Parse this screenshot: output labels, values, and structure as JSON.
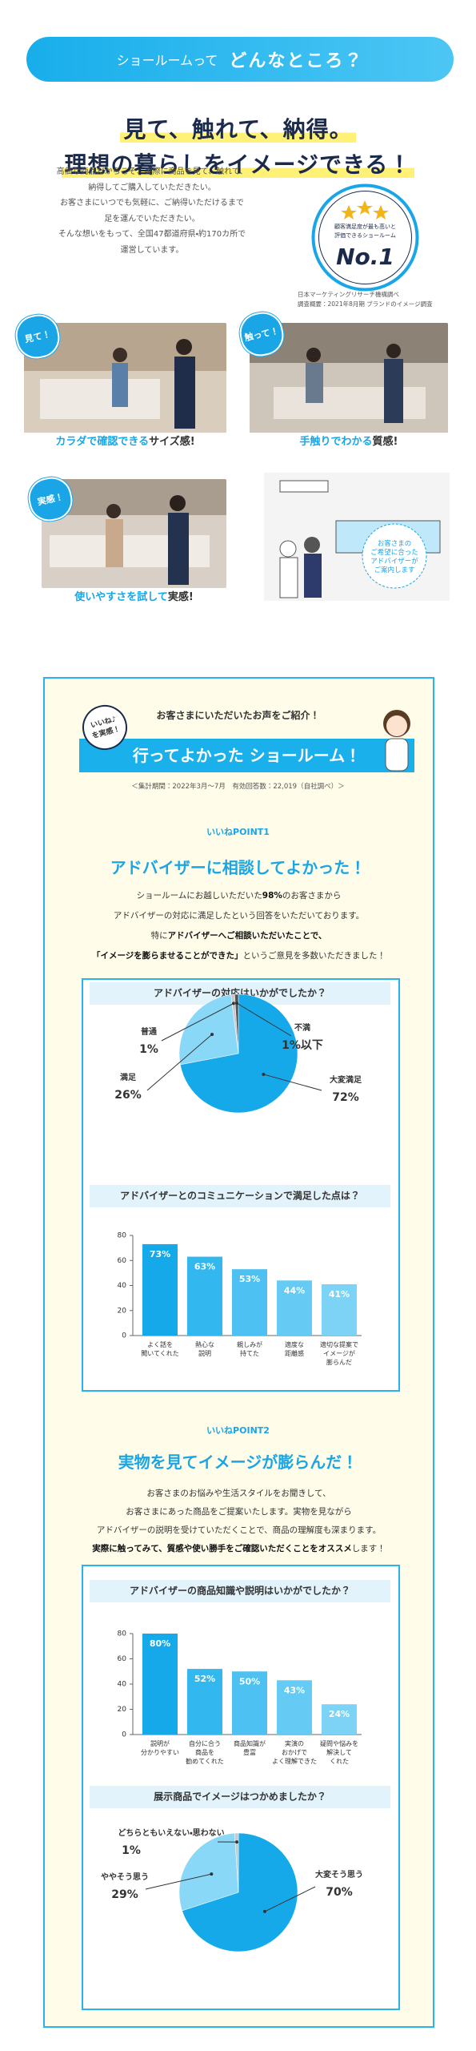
{
  "header": {
    "pill_lead": "ショールームって",
    "pill_title": "どんなところ？",
    "headline": [
      "見て、触れて、納得。",
      "理想の暮らしをイメージできる！"
    ],
    "intro": [
      "高価な商品だからこそ、実際に商品を見て、触れて、",
      "納得してご購入していただきたい。",
      "お客さまにいつでも気軽に、ご納得いただけるまで",
      "足を運んでいただきたい。",
      "そんな想いをもって、全国47都道府県・約170カ所で",
      "運営しています。"
    ],
    "badge": {
      "caption": [
        "顧客満足度が最も高いと",
        "評価できるショールーム"
      ],
      "rank": "No.1"
    },
    "badge_note": [
      "日本マーケティングリサーチ機構調べ",
      "調査概要：2021年8月期 ブランドのイメージ調査"
    ]
  },
  "photos": [
    {
      "bubble": "見て！",
      "emphasis": "カラダで確認できる",
      "text": "サイズ感!"
    },
    {
      "bubble": "触って！",
      "emphasis": "手触りでわかる",
      "text": "質感!"
    },
    {
      "bubble": "実感！",
      "emphasis": "使いやすさを試して",
      "text": "実感!"
    }
  ],
  "illustration": {
    "note": "お客さまの\nご希望に合った\nアドバイザーが\nご案内します"
  },
  "voices": {
    "intro": "お客さまにいただいたお声をご紹介！",
    "badge": "いいね♪\nを実感！",
    "title": "行ってよかった ショールーム！",
    "note": "＜集計期間：2022年3月〜7月　有効回答数：22,019（自社調べ）＞"
  },
  "points": [
    {
      "label": "いいねPOINT1",
      "title": "アドバイザーに相談してよかった！",
      "lines": [
        [
          {
            "text": "ショールームにお越しいただいた"
          },
          {
            "text": "98%",
            "bold": true
          },
          {
            "text": "のお客さまから"
          }
        ],
        [
          {
            "text": "アドバイザーの対応に満足したという回答をいただいております。"
          }
        ],
        [
          {
            "text": "特に"
          },
          {
            "text": "アドバイザーへご相談いただいたことで、",
            "bold": true
          }
        ],
        [
          {
            "text": "「イメージを膨らませることができた」",
            "bold": true
          },
          {
            "text": "というご意見を多数いただきました！"
          }
        ]
      ]
    },
    {
      "label": "いいねPOINT2",
      "title": "実物を見てイメージが膨らんだ！",
      "lines": [
        [
          {
            "text": "お客さまのお悩みや生活スタイルをお聞きして、"
          }
        ],
        [
          {
            "text": "お客さまにあった商品をご提案いたします。実物を見ながら"
          }
        ],
        [
          {
            "text": "アドバイザーの説明を受けていただくことで、商品の理解度も深まります。"
          }
        ],
        [
          {
            "text": "実際に触ってみて、質感や使い勝手をご確認いただくことをオススメ",
            "bold": true
          },
          {
            "text": "します！"
          }
        ]
      ]
    }
  ],
  "chart_data": [
    {
      "type": "pie",
      "title": "アドバイザーの対応はいかがでしたか？",
      "categories": [
        "大変満足",
        "満足",
        "普通",
        "不満"
      ],
      "values": [
        72,
        26,
        1,
        1
      ],
      "value_labels": [
        "72%",
        "26%",
        "1%",
        "1%以下"
      ],
      "colors": [
        "#16a9ea",
        "#8ad8f8",
        "#c9c9c9",
        "#555555"
      ]
    },
    {
      "type": "bar",
      "title": "アドバイザーとのコミュニケーションで満足した点は？",
      "categories": [
        "よく話を\n聞いてくれた",
        "熱心な\n説明",
        "親しみが\n持てた",
        "適度な\n距離感",
        "適切な提案で\nイメージが\n膨らんだ"
      ],
      "values": [
        73,
        63,
        53,
        44,
        41
      ],
      "value_labels": [
        "73%",
        "63%",
        "53%",
        "44%",
        "41%"
      ],
      "colors": [
        "#16a9ea",
        "#33b7ef",
        "#4cc1f2",
        "#66cbf4",
        "#7dd3f6"
      ],
      "ylim": [
        0,
        80
      ],
      "yticks": [
        0,
        20,
        40,
        60,
        80
      ],
      "grid": false
    },
    {
      "type": "bar",
      "title": "アドバイザーの商品知識や説明はいかがでしたか？",
      "categories": [
        "説明が\n分かりやすい",
        "自分に合う\n商品を\n勧めてくれた",
        "商品知識が\n豊富",
        "実演の\nおかげで\nよく理解できた",
        "疑問や悩みを\n解決して\nくれた"
      ],
      "values": [
        80,
        52,
        50,
        43,
        24
      ],
      "value_labels": [
        "80%",
        "52%",
        "50%",
        "43%",
        "24%"
      ],
      "colors": [
        "#16a9ea",
        "#33b7ef",
        "#4cc1f2",
        "#66cbf4",
        "#7dd3f6"
      ],
      "ylim": [
        0,
        80
      ],
      "yticks": [
        0,
        20,
        40,
        60,
        80
      ],
      "grid": false
    },
    {
      "type": "pie",
      "title": "展示商品でイメージはつかめましたか？",
      "categories": [
        "大変そう思う",
        "ややそう思う",
        "どちらともいえない・思わない"
      ],
      "values": [
        70,
        29,
        1
      ],
      "value_labels": [
        "70%",
        "29%",
        "1%"
      ],
      "colors": [
        "#16a9ea",
        "#8ad8f8",
        "#c9c9c9"
      ]
    }
  ]
}
